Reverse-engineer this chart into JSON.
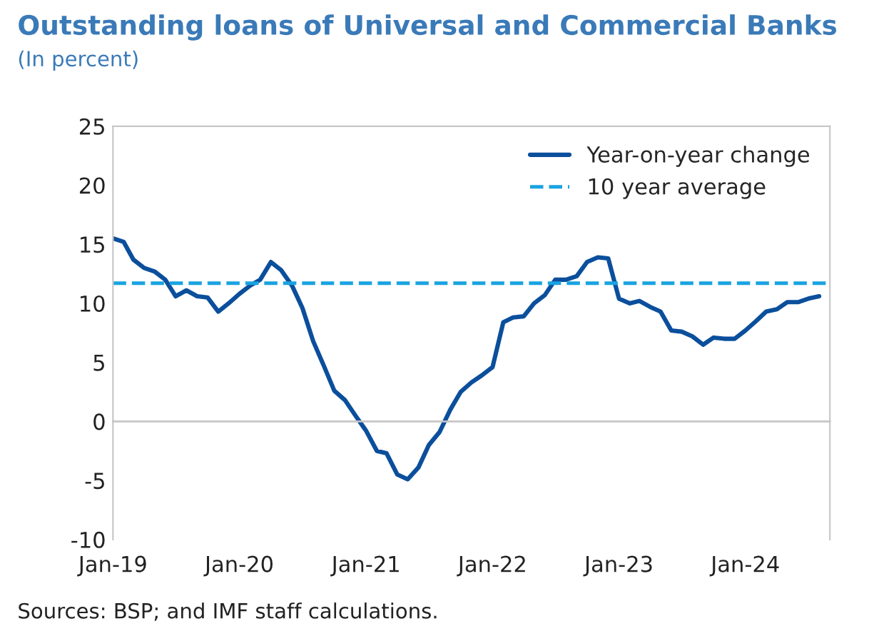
{
  "chart_data": {
    "type": "line",
    "title": "Outstanding loans of Universal and Commercial Banks",
    "subtitle": "(In percent)",
    "annotations": [
      "Sources: BSP; and IMF staff calculations."
    ],
    "x": [
      "2019-01",
      "2019-02",
      "2019-03",
      "2019-04",
      "2019-05",
      "2019-06",
      "2019-07",
      "2019-08",
      "2019-09",
      "2019-10",
      "2019-11",
      "2019-12",
      "2020-01",
      "2020-02",
      "2020-03",
      "2020-04",
      "2020-05",
      "2020-06",
      "2020-07",
      "2020-08",
      "2020-09",
      "2020-10",
      "2020-11",
      "2020-12",
      "2021-01",
      "2021-02",
      "2021-03",
      "2021-04",
      "2021-05",
      "2021-06",
      "2021-07",
      "2021-08",
      "2021-09",
      "2021-10",
      "2021-11",
      "2021-12",
      "2022-01",
      "2022-02",
      "2022-03",
      "2022-04",
      "2022-05",
      "2022-06",
      "2022-07",
      "2022-08",
      "2022-09",
      "2022-10",
      "2022-11",
      "2022-12",
      "2023-01",
      "2023-02",
      "2023-03",
      "2023-04",
      "2023-05",
      "2023-06",
      "2023-07",
      "2023-08",
      "2023-09",
      "2023-10",
      "2023-11",
      "2023-12",
      "2024-01",
      "2024-02",
      "2024-03",
      "2024-04",
      "2024-05",
      "2024-06",
      "2024-07",
      "2024-08"
    ],
    "series": [
      {
        "name": "Year-on-year change",
        "color": "#0b4f9c",
        "values": [
          15.5,
          15.2,
          13.7,
          13.0,
          12.7,
          12.0,
          10.6,
          11.1,
          10.6,
          10.5,
          9.3,
          10.0,
          10.8,
          11.5,
          12.0,
          13.5,
          12.8,
          11.5,
          9.6,
          6.8,
          4.7,
          2.6,
          1.8,
          0.5,
          -0.8,
          -2.5,
          -2.7,
          -4.5,
          -4.9,
          -3.9,
          -2.0,
          -0.9,
          1.0,
          2.5,
          3.3,
          3.9,
          4.6,
          8.4,
          8.8,
          8.9,
          10.0,
          10.7,
          12.0,
          12.0,
          12.3,
          13.5,
          13.9,
          13.8,
          10.4,
          10.0,
          10.2,
          9.7,
          9.3,
          7.7,
          7.6,
          7.2,
          6.5,
          7.1,
          7.0,
          7.0,
          7.7,
          8.5,
          9.3,
          9.5,
          10.1,
          10.1,
          10.4,
          10.6
        ]
      }
    ],
    "ref_lines": [
      {
        "axis": "y",
        "value": 11.7,
        "label": "10 year average",
        "color": "#1aa3e0",
        "line_style": "dashed"
      }
    ],
    "xlim": [
      "2019-01",
      "2024-09"
    ],
    "xticks": [
      {
        "value": "2019-01",
        "label": "Jan-19"
      },
      {
        "value": "2020-01",
        "label": "Jan-20"
      },
      {
        "value": "2021-01",
        "label": "Jan-21"
      },
      {
        "value": "2022-01",
        "label": "Jan-22"
      },
      {
        "value": "2023-01",
        "label": "Jan-23"
      },
      {
        "value": "2024-01",
        "label": "Jan-24"
      }
    ],
    "ylim": [
      -10,
      25
    ],
    "yticks": [
      -10,
      -5,
      0,
      5,
      10,
      15,
      20,
      25
    ],
    "grid": false,
    "legend": "top right",
    "line_style": "solid",
    "marker": "none"
  }
}
